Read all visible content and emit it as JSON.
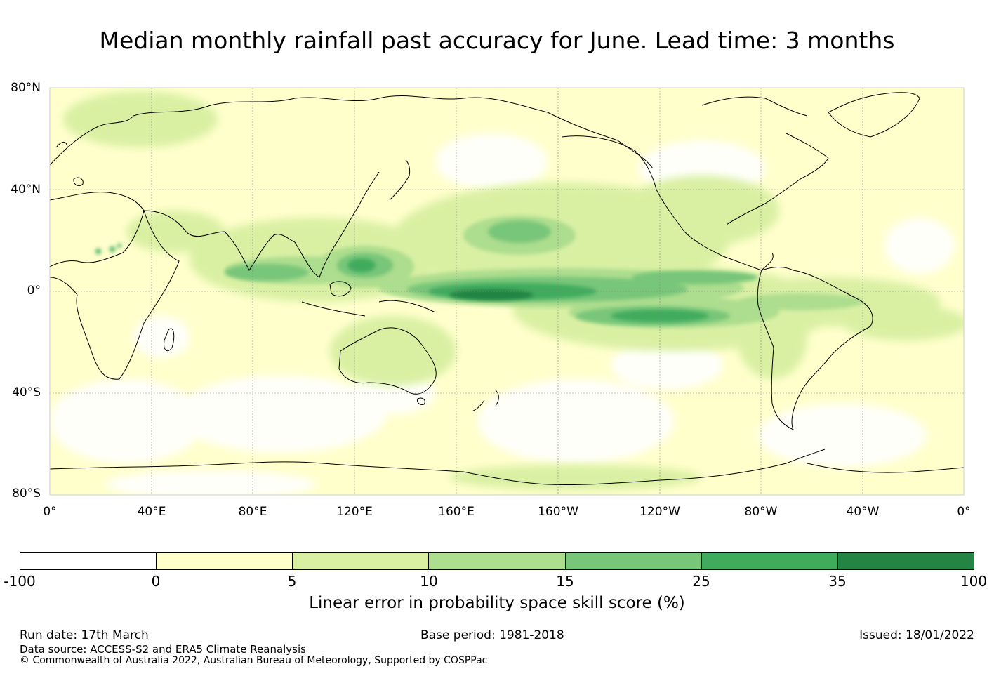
{
  "title": "Median monthly rainfall past accuracy for June. Lead time: 3 months",
  "map": {
    "lat_labels": [
      "80°N",
      "40°N",
      "0°",
      "40°S",
      "80°S"
    ],
    "lon_labels": [
      "0°",
      "40°E",
      "80°E",
      "120°E",
      "160°E",
      "160°W",
      "120°W",
      "80°W",
      "40°W",
      "0°"
    ],
    "background_color": "#ffffcc",
    "coastline_color": "#000000",
    "gridline_color": "#888888"
  },
  "colorbar": {
    "title": "Linear error in probability space skill score (%)",
    "bounds": [
      "-100",
      "0",
      "5",
      "10",
      "15",
      "25",
      "35",
      "100"
    ],
    "colors": [
      "#ffffff",
      "#ffffcc",
      "#d9f0a3",
      "#addd8e",
      "#78c679",
      "#41ab5d",
      "#238443"
    ]
  },
  "footer": {
    "run_date": "Run date: 17th March",
    "base_period": "Base period: 1981-2018",
    "issued": "Issued: 18/01/2022",
    "data_source": "Data source: ACCESS-S2 and ERA5 Climate Reanalysis",
    "copyright": "© Commonwealth of Australia 2022, Australian Bureau of Meteorology, Supported by COSPPac"
  }
}
